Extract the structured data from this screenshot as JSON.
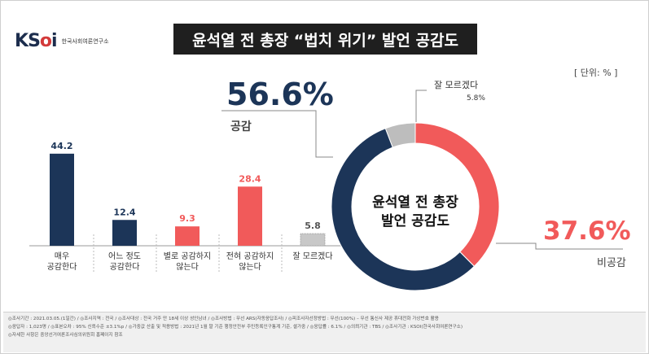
{
  "logo": {
    "mark_a": "K",
    "mark_b": "S",
    "mark_c": "o",
    "mark_d": "i",
    "sub": "한국사회여론연구소"
  },
  "title": "윤석열 전 총장 “법치 위기” 발언 공감도",
  "unit": "[ 단위: % ]",
  "donut": {
    "center_line1": "윤석열 전 총장",
    "center_line2": "발언 공감도",
    "agree_value": "56.6%",
    "agree_label": "공감",
    "disagree_value": "37.6%",
    "disagree_label": "비공감",
    "unsure_label": "잘 모르겠다",
    "unsure_value": "5.8%"
  },
  "colors": {
    "navy": "#1c3558",
    "red": "#f15a5a",
    "gray": "#aaaaaa"
  },
  "chart_data": [
    {
      "type": "bar",
      "categories": [
        "매우\n공감한다",
        "어느 정도\n공감한다",
        "별로 공감하지\n않는다",
        "전혀 공감하지\n않는다",
        "잘 모르겠다"
      ],
      "values": [
        44.2,
        12.4,
        9.3,
        28.4,
        5.8
      ],
      "value_labels": [
        "44.2",
        "12.4",
        "9.3",
        "28.4",
        "5.8"
      ],
      "colors": [
        "#1c3558",
        "#1c3558",
        "#f15a5a",
        "#f15a5a",
        "#aaaaaa"
      ],
      "ylim": [
        0,
        50
      ]
    },
    {
      "type": "pie",
      "categories": [
        "공감",
        "비공감",
        "잘 모르겠다"
      ],
      "values": [
        56.6,
        37.6,
        5.8
      ],
      "colors": [
        "#1c3558",
        "#f15a5a",
        "#aaaaaa"
      ],
      "hole": true
    }
  ],
  "footer": {
    "line1": "◎조사기간 : 2021.03.05.(1일간)  / ◎조사지역 : 전국  / ◎조사대상 : 전국 거주 만 18세 이상 성인남녀  / ◎조사방법 : 무선 ARS(자동응답조사)  / ◎피조사자선정방법 : 무선(100%) – 무선 통신사 제공 휴대전화 가상번호 활용",
    "line2": "◎응답자 : 1,023명  / ◎표본오차 : 95% 신뢰수준 ±3.1%p  / ◎가중값 산출 및 적용방법 : 2021년 1월 말 기준 행정안전부 주민등록인구통계 기준, 셀가중  / ◎응답률 : 6.1%  / ◎의뢰기관 : TBS  / ◎조사기관 : KSOI(한국사회여론연구소)",
    "line3": "◎자세한 사항은 중앙선거여론조사심의위원회 홈페이지 참조"
  }
}
